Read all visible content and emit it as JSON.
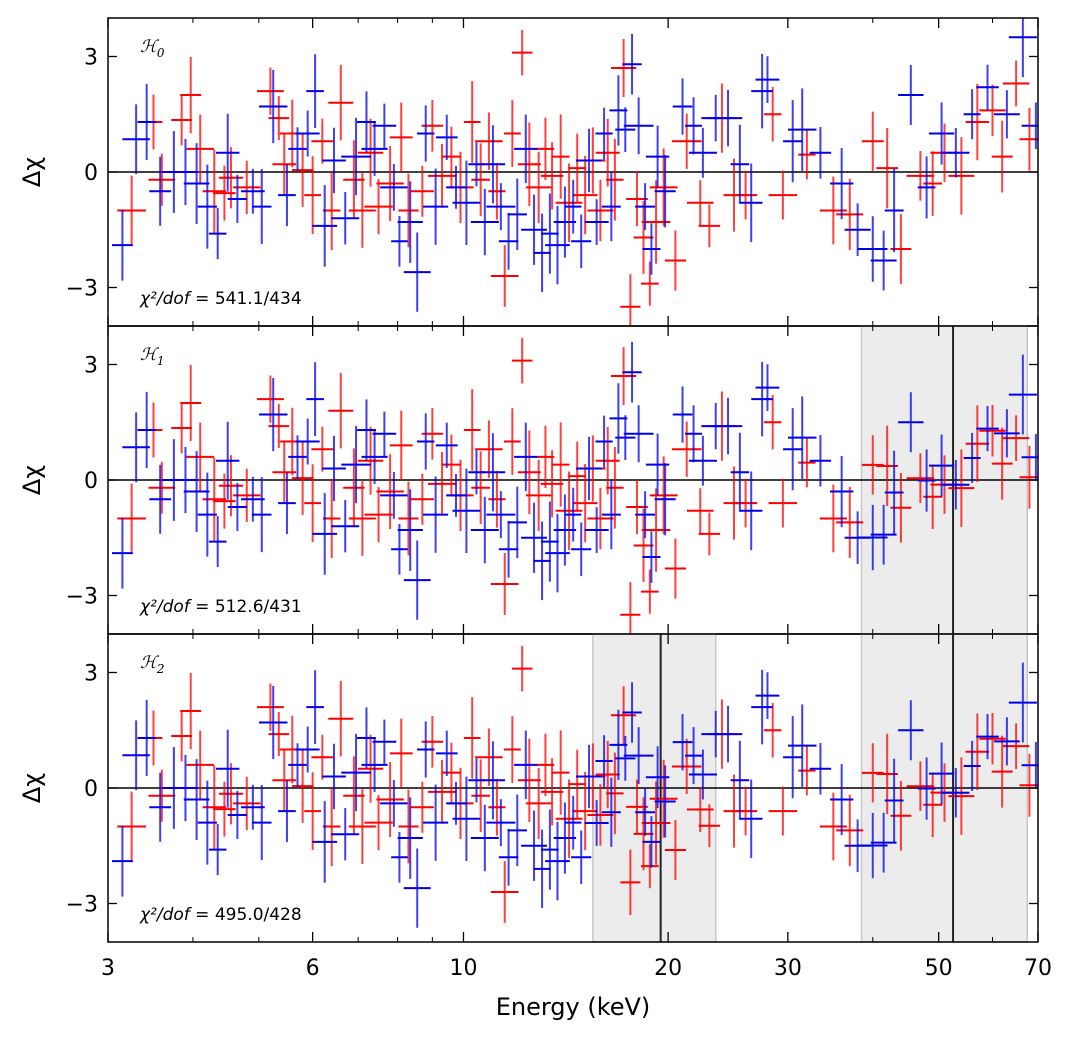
{
  "chart_data": {
    "type": "scatter",
    "description_axes": "log-scaled energy x-axis shared by three stacked residual panels",
    "xlabel": "Energy (keV)",
    "ylabel": "Δχ",
    "xscale": "log",
    "xlim": [
      3,
      70
    ],
    "ylim": [
      -4,
      4
    ],
    "xticks": [
      3,
      6,
      10,
      20,
      30,
      50,
      70
    ],
    "xtick_labels": [
      "3",
      "6",
      "10",
      "20",
      "30",
      "50",
      "70"
    ],
    "yticks": [
      -3,
      0,
      3
    ],
    "ytick_labels": [
      "−3",
      "0",
      "3"
    ],
    "grid": false,
    "colors": {
      "series_a": "#ff0000",
      "series_b": "#0000ee",
      "zero_line": "#000000",
      "shade": "#dddddd"
    },
    "panels": [
      {
        "label": "ℋ₀",
        "label_main": "ℋ",
        "label_sub": "0",
        "chi2_prefix": "χ²/dof = ",
        "chi2_value": "541.1/434",
        "shaded_regions": [],
        "lines": [],
        "seed": 11
      },
      {
        "label": "ℋ₁",
        "label_main": "ℋ",
        "label_sub": "1",
        "chi2_prefix": "χ²/dof = ",
        "chi2_value": "512.6/431",
        "shaded_regions": [
          [
            38.5,
            67.5
          ]
        ],
        "lines": [
          52.5
        ],
        "seed": 11
      },
      {
        "label": "ℋ₂",
        "label_main": "ℋ",
        "label_sub": "2",
        "chi2_prefix": "χ²/dof = ",
        "chi2_value": "495.0/428",
        "shaded_regions": [
          [
            15.5,
            23.5
          ],
          [
            38.5,
            67.5
          ]
        ],
        "lines": [
          19.5,
          52.5
        ],
        "seed": 11
      }
    ],
    "series": [
      {
        "color": "#ff0000",
        "points": [
          [
            3.25,
            -1.0
          ],
          [
            3.5,
            1.3
          ],
          [
            3.6,
            -0.2
          ],
          [
            3.85,
            1.35
          ],
          [
            3.97,
            2.0
          ],
          [
            4.1,
            0.6
          ],
          [
            4.3,
            -0.5
          ],
          [
            4.45,
            -0.55
          ],
          [
            4.55,
            -0.15
          ],
          [
            4.8,
            -0.4
          ],
          [
            5.2,
            2.1
          ],
          [
            5.35,
            1.4
          ],
          [
            5.45,
            0.2
          ],
          [
            5.6,
            1.0
          ],
          [
            5.8,
            0.05
          ],
          [
            6.0,
            -0.6
          ],
          [
            6.2,
            0.8
          ],
          [
            6.4,
            -1.0
          ],
          [
            6.6,
            1.8
          ],
          [
            6.9,
            -0.2
          ],
          [
            7.1,
            -1.0
          ],
          [
            7.3,
            0.5
          ],
          [
            7.5,
            -0.9
          ],
          [
            7.8,
            -0.3
          ],
          [
            8.1,
            0.9
          ],
          [
            8.3,
            -1.0
          ],
          [
            8.7,
            -0.5
          ],
          [
            9.0,
            1.2
          ],
          [
            9.3,
            -0.1
          ],
          [
            9.6,
            0.4
          ],
          [
            9.9,
            -0.4
          ],
          [
            10.3,
            1.3
          ],
          [
            10.6,
            -0.2
          ],
          [
            10.9,
            0.8
          ],
          [
            11.2,
            -0.5
          ],
          [
            11.5,
            -2.7
          ],
          [
            11.8,
            1.0
          ],
          [
            12.2,
            3.1
          ],
          [
            12.5,
            0.2
          ],
          [
            12.9,
            -0.4
          ],
          [
            13.2,
            0.6
          ],
          [
            13.5,
            -0.1
          ],
          [
            13.9,
            0.4
          ],
          [
            14.3,
            -0.8
          ],
          [
            14.7,
            0.1
          ],
          [
            15.1,
            -0.6
          ],
          [
            15.5,
            0.3
          ],
          [
            15.9,
            -1.0
          ],
          [
            16.3,
            0.5
          ],
          [
            16.7,
            -0.2
          ],
          [
            17.2,
            2.7
          ],
          [
            17.6,
            -3.5
          ],
          [
            18.0,
            -0.7
          ],
          [
            18.4,
            -1.7
          ],
          [
            18.8,
            -2.9
          ],
          [
            19.2,
            -1.3
          ],
          [
            19.7,
            -0.4
          ],
          [
            20.5,
            -2.3
          ],
          [
            21.3,
            0.8
          ],
          [
            22.3,
            -0.8
          ],
          [
            23.0,
            -1.4
          ],
          [
            24.0,
            1.4
          ],
          [
            25.0,
            -0.6
          ],
          [
            26.0,
            -0.6
          ],
          [
            28.5,
            1.5
          ],
          [
            29.5,
            -0.6
          ],
          [
            32.0,
            0.45
          ],
          [
            35.0,
            -1.0
          ],
          [
            37.0,
            -1.1
          ],
          [
            40.0,
            0.8
          ],
          [
            42.0,
            0.1
          ],
          [
            44.0,
            -2.0
          ],
          [
            47.0,
            -0.1
          ],
          [
            49.0,
            -0.3
          ],
          [
            51.0,
            0.5
          ],
          [
            54.0,
            -0.1
          ],
          [
            57.0,
            1.3
          ],
          [
            60.0,
            1.6
          ],
          [
            62.0,
            0.4
          ],
          [
            65.0,
            2.3
          ],
          [
            68.0,
            0.85
          ]
        ]
      },
      {
        "color": "#0000ee",
        "points": [
          [
            3.15,
            -1.9
          ],
          [
            3.3,
            0.85
          ],
          [
            3.42,
            1.3
          ],
          [
            3.58,
            -0.5
          ],
          [
            3.75,
            0.0
          ],
          [
            3.9,
            0.0
          ],
          [
            4.05,
            -0.3
          ],
          [
            4.2,
            -0.9
          ],
          [
            4.35,
            -1.6
          ],
          [
            4.5,
            0.5
          ],
          [
            4.65,
            -0.7
          ],
          [
            4.9,
            -0.5
          ],
          [
            5.05,
            -0.9
          ],
          [
            5.25,
            1.7
          ],
          [
            5.5,
            -0.6
          ],
          [
            5.7,
            0.6
          ],
          [
            5.9,
            1.0
          ],
          [
            6.05,
            2.1
          ],
          [
            6.25,
            -1.4
          ],
          [
            6.45,
            0.3
          ],
          [
            6.7,
            -1.2
          ],
          [
            6.95,
            0.4
          ],
          [
            7.2,
            1.3
          ],
          [
            7.4,
            0.6
          ],
          [
            7.65,
            1.2
          ],
          [
            7.9,
            -0.4
          ],
          [
            8.05,
            -1.8
          ],
          [
            8.35,
            -1.3
          ],
          [
            8.55,
            -2.6
          ],
          [
            8.8,
            1.0
          ],
          [
            9.1,
            -0.9
          ],
          [
            9.45,
            0.9
          ],
          [
            9.75,
            -0.4
          ],
          [
            10.1,
            -0.8
          ],
          [
            10.45,
            0.2
          ],
          [
            10.75,
            -1.3
          ],
          [
            11.05,
            0.2
          ],
          [
            11.35,
            -0.9
          ],
          [
            11.65,
            -1.8
          ],
          [
            12.0,
            -1.1
          ],
          [
            12.35,
            0.6
          ],
          [
            12.7,
            -1.5
          ],
          [
            13.05,
            -2.1
          ],
          [
            13.4,
            -1.6
          ],
          [
            13.75,
            -1.9
          ],
          [
            14.1,
            -1.3
          ],
          [
            14.5,
            -0.9
          ],
          [
            14.9,
            -1.8
          ],
          [
            15.3,
            0.3
          ],
          [
            15.7,
            -1.3
          ],
          [
            16.1,
            1.0
          ],
          [
            16.5,
            -0.9
          ],
          [
            16.9,
            1.6
          ],
          [
            17.3,
            1.1
          ],
          [
            17.7,
            2.8
          ],
          [
            18.1,
            1.2
          ],
          [
            18.5,
            -0.9
          ],
          [
            18.9,
            -2.0
          ],
          [
            19.3,
            0.4
          ],
          [
            19.8,
            -0.5
          ],
          [
            21.0,
            1.7
          ],
          [
            21.8,
            1.2
          ],
          [
            22.5,
            0.5
          ],
          [
            23.5,
            1.4
          ],
          [
            24.5,
            1.4
          ],
          [
            25.5,
            0.2
          ],
          [
            26.5,
            -0.8
          ],
          [
            27.5,
            2.1
          ],
          [
            28.0,
            2.4
          ],
          [
            30.5,
            0.8
          ],
          [
            31.5,
            1.1
          ],
          [
            33.5,
            0.5
          ],
          [
            36.0,
            -0.3
          ],
          [
            38.0,
            -1.5
          ],
          [
            40.0,
            -2.0
          ],
          [
            41.5,
            -2.3
          ],
          [
            43.0,
            -1.0
          ],
          [
            45.5,
            2.0
          ],
          [
            48.0,
            -0.4
          ],
          [
            50.5,
            1.0
          ],
          [
            53.0,
            0.5
          ],
          [
            56.0,
            1.5
          ],
          [
            59.0,
            2.2
          ],
          [
            63.0,
            1.5
          ],
          [
            66.5,
            3.5
          ],
          [
            69.5,
            1.2
          ]
        ]
      }
    ]
  }
}
